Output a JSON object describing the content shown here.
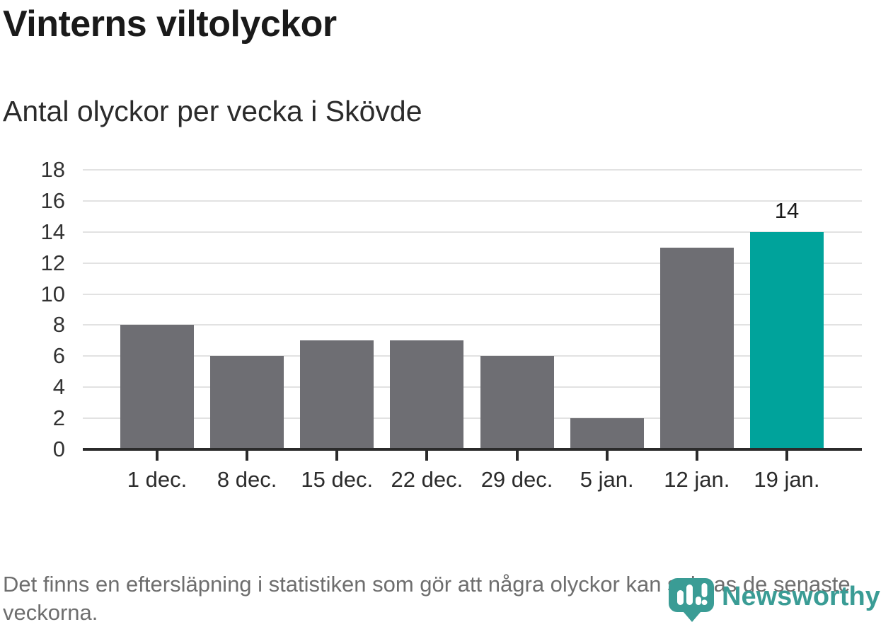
{
  "title": "Vinterns viltolyckor",
  "subtitle": "Antal olyckor per vecka i Skövde",
  "chart_data": {
    "type": "bar",
    "title": "Vinterns viltolyckor",
    "subtitle": "Antal olyckor per vecka i Skövde",
    "categories": [
      "1 dec.",
      "8 dec.",
      "15 dec.",
      "22 dec.",
      "29 dec.",
      "5 jan.",
      "12 jan.",
      "19 jan."
    ],
    "values": [
      8,
      6,
      7,
      7,
      6,
      2,
      13,
      14
    ],
    "yticks": [
      0,
      2,
      4,
      6,
      8,
      10,
      12,
      14,
      16,
      18
    ],
    "ylim": [
      0,
      18
    ],
    "xlabel": "",
    "ylabel": "",
    "grid": true,
    "legend": "none",
    "highlight_index": 7,
    "value_labels": [
      {
        "index": 7,
        "text": "14"
      }
    ],
    "colors": {
      "bar": "#6e6e73",
      "highlight": "#00a39b",
      "gridline": "#e2e2e2",
      "axis": "#2b2b2b",
      "tick_text": "#333333"
    }
  },
  "footer": {
    "note": "Det finns en eftersläpning i statistiken som gör att några olyckor kan saknas de senaste veckorna."
  },
  "logo": {
    "name": "Newsworthy",
    "color": "#3a9c95"
  }
}
